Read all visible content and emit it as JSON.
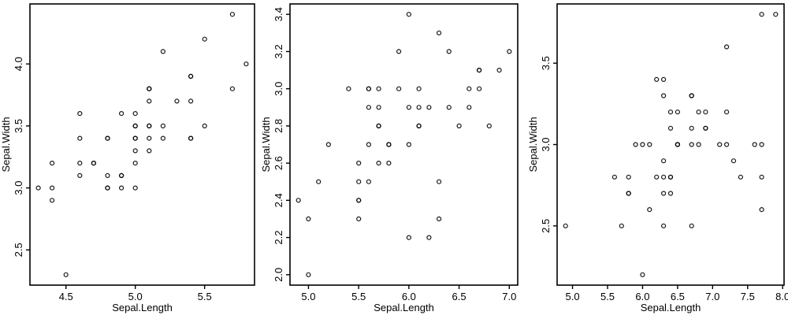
{
  "figure": {
    "background": "#ffffff",
    "axis_color": "#000000",
    "point_color": "#000000"
  },
  "chart_data": [
    {
      "type": "scatter",
      "xlabel": "Sepal.Length",
      "ylabel": "Sepal.Width",
      "xlim": [
        4.24,
        5.86
      ],
      "ylim": [
        2.216,
        4.484
      ],
      "xticks": [
        4.5,
        5.0,
        5.5
      ],
      "xtick_labels": [
        "4.5",
        "5.0",
        "5.5"
      ],
      "yticks": [
        2.5,
        3.0,
        3.5,
        4.0
      ],
      "ytick_labels": [
        "2.5",
        "3.0",
        "3.5",
        "4.0"
      ],
      "points": [
        [
          5.1,
          3.5
        ],
        [
          4.9,
          3.0
        ],
        [
          4.7,
          3.2
        ],
        [
          4.6,
          3.1
        ],
        [
          5.0,
          3.6
        ],
        [
          5.4,
          3.9
        ],
        [
          4.6,
          3.4
        ],
        [
          5.0,
          3.4
        ],
        [
          4.4,
          2.9
        ],
        [
          4.9,
          3.1
        ],
        [
          5.4,
          3.7
        ],
        [
          4.8,
          3.4
        ],
        [
          4.8,
          3.0
        ],
        [
          4.3,
          3.0
        ],
        [
          5.8,
          4.0
        ],
        [
          5.7,
          4.4
        ],
        [
          5.4,
          3.9
        ],
        [
          5.1,
          3.5
        ],
        [
          5.7,
          3.8
        ],
        [
          5.1,
          3.8
        ],
        [
          5.4,
          3.4
        ],
        [
          5.1,
          3.7
        ],
        [
          4.6,
          3.6
        ],
        [
          5.1,
          3.3
        ],
        [
          4.8,
          3.4
        ],
        [
          5.0,
          3.0
        ],
        [
          5.0,
          3.4
        ],
        [
          5.2,
          3.5
        ],
        [
          5.2,
          3.4
        ],
        [
          4.7,
          3.2
        ],
        [
          4.8,
          3.1
        ],
        [
          5.4,
          3.4
        ],
        [
          5.2,
          4.1
        ],
        [
          5.5,
          4.2
        ],
        [
          4.9,
          3.1
        ],
        [
          5.0,
          3.2
        ],
        [
          5.5,
          3.5
        ],
        [
          4.9,
          3.6
        ],
        [
          4.4,
          3.0
        ],
        [
          5.1,
          3.4
        ],
        [
          5.0,
          3.5
        ],
        [
          4.5,
          2.3
        ],
        [
          4.4,
          3.2
        ],
        [
          5.0,
          3.5
        ],
        [
          5.1,
          3.8
        ],
        [
          4.8,
          3.0
        ],
        [
          5.1,
          3.8
        ],
        [
          4.6,
          3.2
        ],
        [
          5.3,
          3.7
        ],
        [
          5.0,
          3.3
        ]
      ]
    },
    {
      "type": "scatter",
      "xlabel": "Sepal.Length",
      "ylabel": "Sepal.Width",
      "xlim": [
        4.816,
        7.084
      ],
      "ylim": [
        1.944,
        3.456
      ],
      "xticks": [
        5.0,
        5.5,
        6.0,
        6.5,
        7.0
      ],
      "xtick_labels": [
        "5.0",
        "5.5",
        "6.0",
        "6.5",
        "7.0"
      ],
      "yticks": [
        2.0,
        2.2,
        2.4,
        2.6,
        2.8,
        3.0,
        3.2,
        3.4
      ],
      "ytick_labels": [
        "2.0",
        "2.2",
        "2.4",
        "2.6",
        "2.8",
        "3.0",
        "3.2",
        "3.4"
      ],
      "points": [
        [
          7.0,
          3.2
        ],
        [
          6.4,
          3.2
        ],
        [
          6.9,
          3.1
        ],
        [
          5.5,
          2.3
        ],
        [
          6.5,
          2.8
        ],
        [
          5.7,
          2.8
        ],
        [
          6.3,
          3.3
        ],
        [
          4.9,
          2.4
        ],
        [
          6.6,
          2.9
        ],
        [
          5.2,
          2.7
        ],
        [
          5.0,
          2.0
        ],
        [
          5.9,
          3.0
        ],
        [
          6.0,
          2.2
        ],
        [
          6.1,
          2.9
        ],
        [
          5.6,
          2.9
        ],
        [
          6.7,
          3.1
        ],
        [
          5.6,
          3.0
        ],
        [
          5.8,
          2.7
        ],
        [
          6.2,
          2.2
        ],
        [
          5.6,
          2.5
        ],
        [
          5.9,
          3.2
        ],
        [
          6.1,
          2.8
        ],
        [
          6.3,
          2.5
        ],
        [
          6.1,
          2.8
        ],
        [
          6.4,
          2.9
        ],
        [
          6.6,
          3.0
        ],
        [
          6.8,
          2.8
        ],
        [
          6.7,
          3.0
        ],
        [
          6.0,
          2.9
        ],
        [
          5.7,
          2.6
        ],
        [
          5.5,
          2.4
        ],
        [
          5.5,
          2.4
        ],
        [
          5.8,
          2.7
        ],
        [
          6.0,
          2.7
        ],
        [
          5.4,
          3.0
        ],
        [
          6.0,
          3.4
        ],
        [
          6.7,
          3.1
        ],
        [
          6.3,
          2.3
        ],
        [
          5.6,
          3.0
        ],
        [
          5.5,
          2.5
        ],
        [
          5.5,
          2.6
        ],
        [
          6.1,
          3.0
        ],
        [
          5.8,
          2.6
        ],
        [
          5.0,
          2.3
        ],
        [
          5.6,
          2.7
        ],
        [
          5.7,
          3.0
        ],
        [
          5.7,
          2.9
        ],
        [
          6.2,
          2.9
        ],
        [
          5.1,
          2.5
        ],
        [
          5.7,
          2.8
        ]
      ]
    },
    {
      "type": "scatter",
      "xlabel": "Sepal.Length",
      "ylabel": "Sepal.Width",
      "xlim": [
        4.78,
        8.02
      ],
      "ylim": [
        2.136,
        3.864
      ],
      "xticks": [
        5.0,
        5.5,
        6.0,
        6.5,
        7.0,
        7.5,
        8.0
      ],
      "xtick_labels": [
        "5.0",
        "5.5",
        "6.0",
        "6.5",
        "7.0",
        "7.5",
        "8.0"
      ],
      "yticks": [
        2.5,
        3.0,
        3.5
      ],
      "ytick_labels": [
        "2.5",
        "3.0",
        "3.5"
      ],
      "points": [
        [
          6.3,
          3.3
        ],
        [
          5.8,
          2.7
        ],
        [
          7.1,
          3.0
        ],
        [
          6.3,
          2.9
        ],
        [
          6.5,
          3.0
        ],
        [
          7.6,
          3.0
        ],
        [
          4.9,
          2.5
        ],
        [
          7.3,
          2.9
        ],
        [
          6.7,
          2.5
        ],
        [
          7.2,
          3.6
        ],
        [
          6.5,
          3.2
        ],
        [
          6.4,
          2.7
        ],
        [
          6.8,
          3.0
        ],
        [
          5.7,
          2.5
        ],
        [
          5.8,
          2.8
        ],
        [
          6.4,
          3.2
        ],
        [
          6.5,
          3.0
        ],
        [
          7.7,
          3.8
        ],
        [
          7.7,
          2.6
        ],
        [
          6.0,
          2.2
        ],
        [
          6.9,
          3.2
        ],
        [
          5.6,
          2.8
        ],
        [
          7.7,
          2.8
        ],
        [
          6.3,
          2.7
        ],
        [
          6.7,
          3.3
        ],
        [
          7.2,
          3.2
        ],
        [
          6.2,
          2.8
        ],
        [
          6.1,
          3.0
        ],
        [
          6.4,
          2.8
        ],
        [
          7.2,
          3.0
        ],
        [
          7.4,
          2.8
        ],
        [
          7.9,
          3.8
        ],
        [
          6.4,
          2.8
        ],
        [
          6.3,
          2.8
        ],
        [
          6.1,
          2.6
        ],
        [
          7.7,
          3.0
        ],
        [
          6.3,
          3.4
        ],
        [
          6.4,
          3.1
        ],
        [
          6.0,
          3.0
        ],
        [
          6.9,
          3.1
        ],
        [
          6.7,
          3.1
        ],
        [
          6.9,
          3.1
        ],
        [
          5.8,
          2.7
        ],
        [
          6.8,
          3.2
        ],
        [
          6.7,
          3.3
        ],
        [
          6.7,
          3.0
        ],
        [
          6.3,
          2.5
        ],
        [
          6.5,
          3.0
        ],
        [
          6.2,
          3.4
        ],
        [
          5.9,
          3.0
        ]
      ]
    }
  ]
}
